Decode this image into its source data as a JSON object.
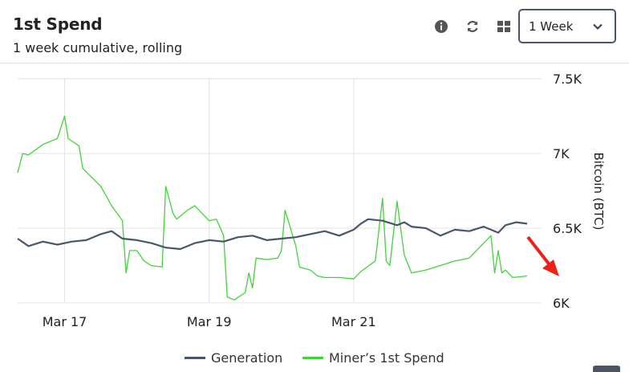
{
  "header": {
    "title": "1st Spend",
    "subtitle": "1 week cumulative, rolling"
  },
  "toolbar": {
    "icons": [
      "info-icon",
      "refresh-icon",
      "grid-icon"
    ],
    "period_select": "1 Week"
  },
  "colors": {
    "generation": "#4b5668",
    "spend": "#44d13c",
    "arrow": "#e8231c",
    "grid": "#e3e3e3"
  },
  "chart_data": {
    "type": "line",
    "title": "1st Spend",
    "ylabel": "Bitcoin (BTC)",
    "ylim": [
      6000,
      7500
    ],
    "yticks": [
      6000,
      6500,
      7000,
      7500
    ],
    "ytick_labels": [
      "6K",
      "6.5K",
      "7K",
      "7.5K"
    ],
    "x_range": [
      16.35,
      23.6
    ],
    "xticks": [
      17,
      19,
      21
    ],
    "xtick_labels": [
      "Mar 17",
      "Mar 19",
      "Mar 21"
    ],
    "grid": true,
    "legend_position": "bottom",
    "series": [
      {
        "name": "Generation",
        "color": "#4b5668",
        "x": [
          16.35,
          16.5,
          16.7,
          16.9,
          17.1,
          17.3,
          17.5,
          17.65,
          17.8,
          18.0,
          18.2,
          18.4,
          18.6,
          18.8,
          19.0,
          19.2,
          19.4,
          19.6,
          19.8,
          20.0,
          20.2,
          20.4,
          20.6,
          20.8,
          21.0,
          21.1,
          21.2,
          21.4,
          21.6,
          21.7,
          21.8,
          22.0,
          22.2,
          22.4,
          22.6,
          22.8,
          23.0,
          23.1,
          23.25,
          23.4
        ],
        "y": [
          6430,
          6380,
          6410,
          6390,
          6410,
          6420,
          6460,
          6480,
          6430,
          6420,
          6400,
          6370,
          6360,
          6400,
          6420,
          6410,
          6440,
          6450,
          6420,
          6430,
          6440,
          6460,
          6480,
          6450,
          6490,
          6530,
          6560,
          6550,
          6520,
          6540,
          6510,
          6500,
          6450,
          6490,
          6480,
          6510,
          6470,
          6520,
          6540,
          6530
        ]
      },
      {
        "name": "Miner’s 1st Spend",
        "color": "#44d13c",
        "x": [
          16.35,
          16.42,
          16.5,
          16.7,
          16.9,
          17.0,
          17.05,
          17.2,
          17.25,
          17.5,
          17.65,
          17.8,
          17.85,
          17.9,
          18.0,
          18.1,
          18.2,
          18.35,
          18.4,
          18.5,
          18.55,
          18.7,
          18.8,
          18.9,
          19.0,
          19.1,
          19.2,
          19.25,
          19.35,
          19.5,
          19.55,
          19.6,
          19.65,
          19.8,
          19.95,
          20.0,
          20.05,
          20.2,
          20.25,
          20.4,
          20.5,
          20.6,
          20.8,
          21.0,
          21.1,
          21.3,
          21.4,
          21.45,
          21.5,
          21.6,
          21.7,
          21.8,
          22.0,
          22.2,
          22.4,
          22.6,
          22.8,
          22.9,
          22.95,
          23.0,
          23.05,
          23.1,
          23.2,
          23.4
        ],
        "y": [
          6870,
          7000,
          6990,
          7060,
          7100,
          7250,
          7100,
          7050,
          6900,
          6780,
          6650,
          6550,
          6200,
          6350,
          6350,
          6280,
          6250,
          6240,
          6780,
          6600,
          6560,
          6620,
          6650,
          6600,
          6550,
          6560,
          6450,
          6040,
          6020,
          6070,
          6200,
          6100,
          6300,
          6290,
          6300,
          6350,
          6620,
          6380,
          6240,
          6220,
          6180,
          6170,
          6170,
          6160,
          6210,
          6280,
          6700,
          6280,
          6250,
          6680,
          6320,
          6200,
          6220,
          6250,
          6280,
          6300,
          6400,
          6450,
          6200,
          6350,
          6200,
          6220,
          6170,
          6180
        ]
      }
    ],
    "annotation": "red arrow marker"
  },
  "legend": {
    "items": [
      "Generation",
      "Miner’s 1st Spend"
    ]
  }
}
